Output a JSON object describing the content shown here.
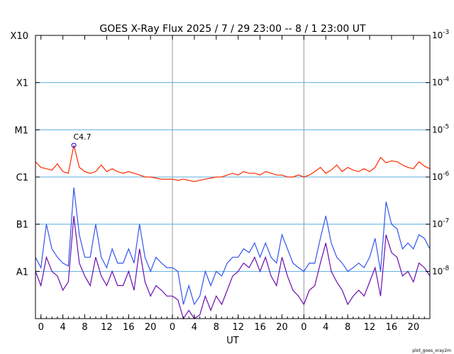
{
  "title": "GOES X-Ray Flux   2025 /  7 / 29   23:00 --  8 /  1   23:00   UT",
  "credit": "plot_goes_xray2m",
  "chart_data": {
    "type": "line",
    "title": "GOES X-Ray Flux   2025 /  7 / 29   23:00 --  8 /  1   23:00   UT",
    "xlabel": "UT",
    "x_unit": "hours since 2025-07-29 23:00 UT",
    "xlim": [
      0,
      72
    ],
    "x_tick_labels": [
      "0",
      "4",
      "8",
      "12",
      "16",
      "20",
      "0",
      "4",
      "8",
      "12",
      "16",
      "20",
      "0",
      "4",
      "8",
      "12",
      "16",
      "20"
    ],
    "y_scale": "log",
    "ylim": [
      1e-09,
      0.001
    ],
    "y_left_labels": [
      "X10",
      "X1",
      "M1",
      "C1",
      "B1",
      "A1"
    ],
    "y_right_labels": [
      "10-3",
      "10-4",
      "10-5",
      "10-6",
      "10-7",
      "10-8"
    ],
    "flare_annotation": {
      "label": "C4.7",
      "x": 7,
      "y": 4.7e-06
    },
    "series": [
      {
        "color": "#ff2a00",
        "x": [
          0,
          1,
          2,
          3,
          4,
          5,
          6,
          7,
          8,
          9,
          10,
          11,
          12,
          13,
          14,
          15,
          16,
          17,
          18,
          19,
          20,
          21,
          22,
          23,
          24,
          25,
          26,
          27,
          28,
          29,
          30,
          31,
          32,
          33,
          34,
          35,
          36,
          37,
          38,
          39,
          40,
          41,
          42,
          43,
          44,
          45,
          46,
          47,
          48,
          49,
          50,
          51,
          52,
          53,
          54,
          55,
          56,
          57,
          58,
          59,
          60,
          61,
          62,
          63,
          64,
          65,
          66,
          67,
          68,
          69,
          70,
          71,
          72
        ],
        "y": [
          2.1e-06,
          1.6e-06,
          1.5e-06,
          1.4e-06,
          1.9e-06,
          1.3e-06,
          1.2e-06,
          4.7e-06,
          1.6e-06,
          1.3e-06,
          1.2e-06,
          1.3e-06,
          1.8e-06,
          1.3e-06,
          1.5e-06,
          1.3e-06,
          1.2e-06,
          1.3e-06,
          1.2e-06,
          1.1e-06,
          1e-06,
          1e-06,
          9.5e-07,
          9e-07,
          9e-07,
          9e-07,
          8.5e-07,
          9e-07,
          8.5e-07,
          8e-07,
          8.5e-07,
          9e-07,
          9.5e-07,
          1e-06,
          1e-06,
          1.1e-06,
          1.2e-06,
          1.1e-06,
          1.3e-06,
          1.2e-06,
          1.2e-06,
          1.1e-06,
          1.3e-06,
          1.2e-06,
          1.1e-06,
          1.1e-06,
          1e-06,
          1e-06,
          1.1e-06,
          1e-06,
          1.1e-06,
          1.3e-06,
          1.6e-06,
          1.2e-06,
          1.4e-06,
          1.8e-06,
          1.3e-06,
          1.6e-06,
          1.4e-06,
          1.3e-06,
          1.5e-06,
          1.3e-06,
          1.6e-06,
          2.6e-06,
          2e-06,
          2.2e-06,
          2.1e-06,
          1.8e-06,
          1.6e-06,
          1.5e-06,
          2.1e-06,
          1.7e-06,
          1.5e-06
        ]
      },
      {
        "color": "#3355ee",
        "x": [
          0,
          1,
          2,
          3,
          4,
          5,
          6,
          7,
          8,
          9,
          10,
          11,
          12,
          13,
          14,
          15,
          16,
          17,
          18,
          19,
          20,
          21,
          22,
          23,
          24,
          25,
          26,
          27,
          28,
          29,
          30,
          31,
          32,
          33,
          34,
          35,
          36,
          37,
          38,
          39,
          40,
          41,
          42,
          43,
          44,
          45,
          46,
          47,
          48,
          49,
          50,
          51,
          52,
          53,
          54,
          55,
          56,
          57,
          58,
          59,
          60,
          61,
          62,
          63,
          64,
          65,
          66,
          67,
          68,
          69,
          70,
          71,
          72
        ],
        "y": [
          2e-08,
          1.2e-08,
          1e-07,
          3e-08,
          2e-08,
          1.5e-08,
          1.3e-08,
          6e-07,
          6e-08,
          2e-08,
          2e-08,
          1e-07,
          2e-08,
          1.2e-08,
          3e-08,
          1.5e-08,
          1.5e-08,
          3e-08,
          1.5e-08,
          1e-07,
          2e-08,
          1e-08,
          2e-08,
          1.5e-08,
          1.2e-08,
          1.2e-08,
          1e-08,
          2e-09,
          5e-09,
          2e-09,
          3e-09,
          1e-08,
          5e-09,
          1e-08,
          8e-09,
          1.5e-08,
          2e-08,
          2e-08,
          3e-08,
          2.5e-08,
          4e-08,
          2e-08,
          4e-08,
          2e-08,
          1.5e-08,
          6e-08,
          3e-08,
          1.5e-08,
          1.2e-08,
          1e-08,
          1.5e-08,
          1.5e-08,
          5e-08,
          1.5e-07,
          4e-08,
          2e-08,
          1.5e-08,
          1e-08,
          1.2e-08,
          1.5e-08,
          1.2e-08,
          2e-08,
          5e-08,
          1e-08,
          3e-07,
          1e-07,
          8e-08,
          3e-08,
          4e-08,
          3e-08,
          6e-08,
          5e-08,
          3e-08
        ]
      },
      {
        "color": "#6a0dad",
        "x": [
          0,
          1,
          2,
          3,
          4,
          5,
          6,
          7,
          8,
          9,
          10,
          11,
          12,
          13,
          14,
          15,
          16,
          17,
          18,
          19,
          20,
          21,
          22,
          23,
          24,
          25,
          26,
          27,
          28,
          29,
          30,
          31,
          32,
          33,
          34,
          35,
          36,
          37,
          38,
          39,
          40,
          41,
          42,
          43,
          44,
          45,
          46,
          47,
          48,
          49,
          50,
          51,
          52,
          53,
          54,
          55,
          56,
          57,
          58,
          59,
          60,
          61,
          62,
          63,
          64,
          65,
          66,
          67,
          68,
          69,
          70,
          71,
          72
        ],
        "y": [
          1e-08,
          5e-09,
          2e-08,
          1e-08,
          8e-09,
          4e-09,
          6e-09,
          1.5e-07,
          1.5e-08,
          8e-09,
          5e-09,
          2e-08,
          8e-09,
          5e-09,
          1e-08,
          5e-09,
          5e-09,
          1e-08,
          4e-09,
          3e-08,
          6e-09,
          3e-09,
          5e-09,
          4e-09,
          3e-09,
          3e-09,
          2.5e-09,
          1e-09,
          1.5e-09,
          1e-09,
          1.2e-09,
          3e-09,
          1.5e-09,
          3e-09,
          2e-09,
          4e-09,
          8e-09,
          1e-08,
          1.5e-08,
          1.2e-08,
          2e-08,
          1e-08,
          2e-08,
          8e-09,
          5e-09,
          2e-08,
          8e-09,
          4e-09,
          3e-09,
          2e-09,
          4e-09,
          5e-09,
          1.5e-08,
          4e-08,
          1e-08,
          6e-09,
          4e-09,
          2e-09,
          3e-09,
          4e-09,
          3e-09,
          6e-09,
          1.2e-08,
          3e-09,
          6e-08,
          2.5e-08,
          2e-08,
          8e-09,
          1e-08,
          6e-09,
          1.5e-08,
          1.2e-08,
          8e-09
        ]
      }
    ]
  }
}
